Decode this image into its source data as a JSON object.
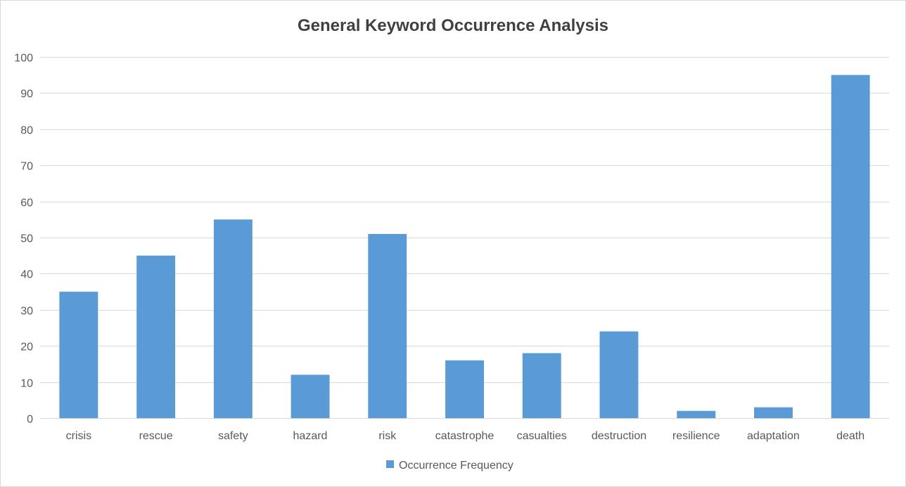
{
  "chart_data": {
    "type": "bar",
    "title": "General Keyword Occurrence Analysis",
    "categories": [
      "crisis",
      "rescue",
      "safety",
      "hazard",
      "risk",
      "catastrophe",
      "casualties",
      "destruction",
      "resilience",
      "adaptation",
      "death"
    ],
    "series": [
      {
        "name": "Occurrence Frequency",
        "values": [
          35,
          45,
          55,
          12,
          51,
          16,
          18,
          24,
          2,
          3,
          95
        ],
        "color": "#5b9bd5"
      }
    ],
    "ylim": [
      0,
      100
    ],
    "yticks": [
      0,
      10,
      20,
      30,
      40,
      50,
      60,
      70,
      80,
      90,
      100
    ],
    "xlabel": "",
    "ylabel": "",
    "grid": true,
    "legend_position": "bottom",
    "gridline_color": "#d9d9d9"
  }
}
